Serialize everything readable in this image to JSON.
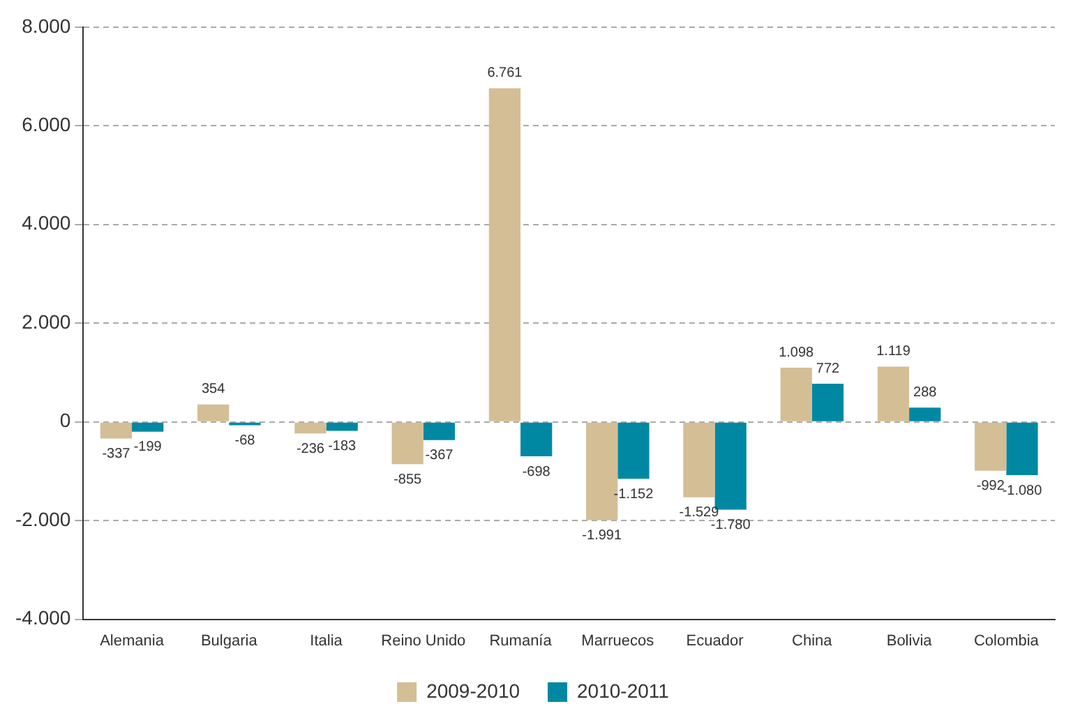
{
  "chart_data": {
    "type": "bar",
    "categories": [
      "Alemania",
      "Bulgaria",
      "Italia",
      "Reino Unido",
      "Rumanía",
      "Marruecos",
      "Ecuador",
      "China",
      "Bolivia",
      "Colombia"
    ],
    "series": [
      {
        "name": "2009-2010",
        "color": "#d4be96",
        "values": [
          -337,
          354,
          -236,
          -855,
          6761,
          -1991,
          -1529,
          1098,
          1119,
          -992
        ],
        "value_labels": [
          "-337",
          "354",
          "-236",
          "-855",
          "6.761",
          "-1.991",
          "-1.529",
          "1.098",
          "1.119",
          "-992"
        ]
      },
      {
        "name": "2010-2011",
        "color": "#0088a3",
        "values": [
          -199,
          -68,
          -183,
          -367,
          -698,
          -1152,
          -1780,
          772,
          288,
          -1080
        ],
        "value_labels": [
          "-199",
          "-68",
          "-183",
          "-367",
          "-698",
          "-1.152",
          "-1.780",
          "772",
          "288",
          "-1.080"
        ]
      }
    ],
    "ylim": [
      -4000,
      8000
    ],
    "yticks": [
      {
        "value": -4000,
        "label": "-4.000"
      },
      {
        "value": -2000,
        "label": "-2.000"
      },
      {
        "value": 0,
        "label": "0"
      },
      {
        "value": 2000,
        "label": "2.000"
      },
      {
        "value": 4000,
        "label": "4.000"
      },
      {
        "value": 6000,
        "label": "6.000"
      },
      {
        "value": 8000,
        "label": "8.000"
      }
    ],
    "grid": "y",
    "legend": "bottom"
  }
}
